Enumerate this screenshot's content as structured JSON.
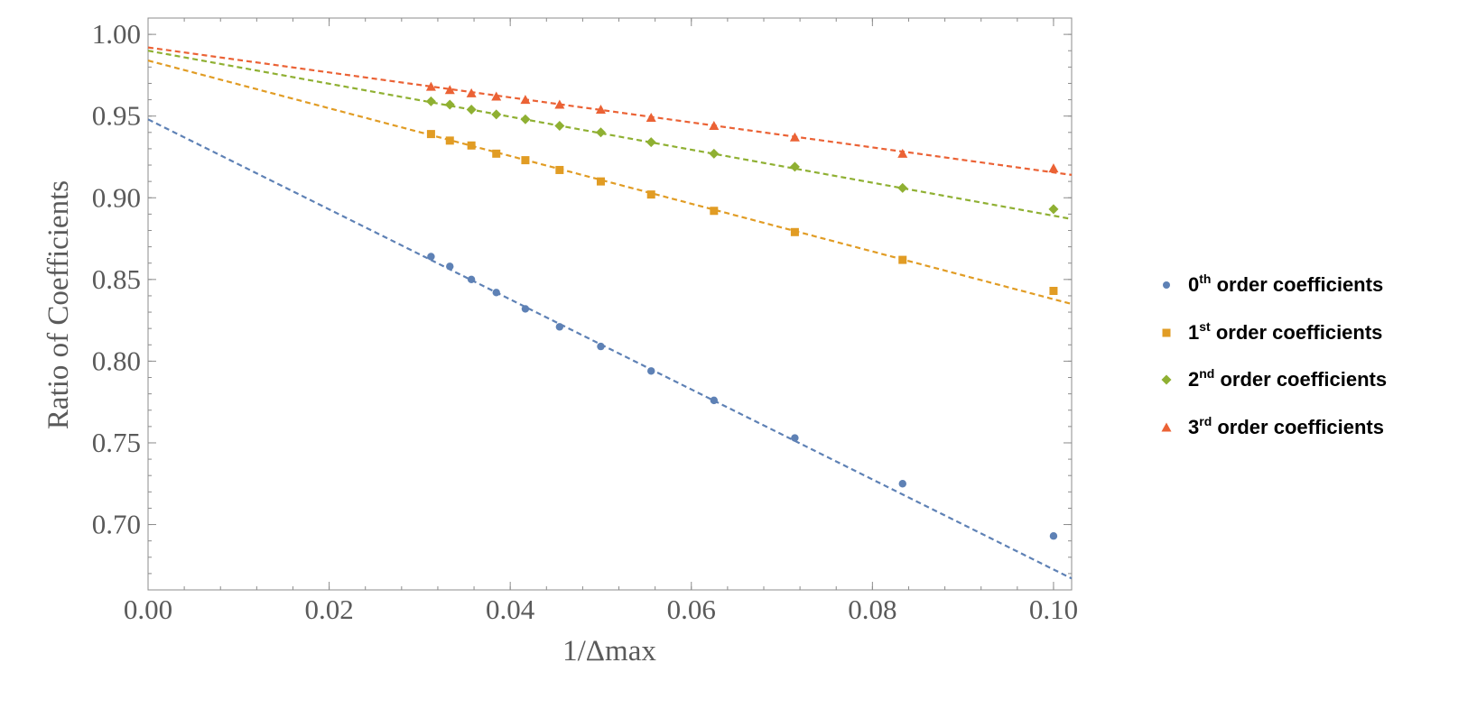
{
  "chart_data": {
    "type": "scatter",
    "xlabel": "1/Δmax",
    "ylabel": "Ratio of Coefficients",
    "xlim": [
      0,
      0.102
    ],
    "ylim": [
      0.66,
      1.01
    ],
    "x_ticks": [
      "0.00",
      "0.02",
      "0.04",
      "0.06",
      "0.08",
      "0.10"
    ],
    "y_ticks": [
      "0.70",
      "0.75",
      "0.80",
      "0.85",
      "0.90",
      "0.95",
      "1.00"
    ],
    "grid": false,
    "frame": true,
    "legend_position": "right",
    "x": [
      0.03125,
      0.03333,
      0.03571,
      0.03846,
      0.04167,
      0.04545,
      0.05,
      0.05556,
      0.0625,
      0.07143,
      0.08333,
      0.1
    ],
    "series": [
      {
        "name_num": "0",
        "name_sup": "th",
        "name_rest": " order coefficients",
        "marker": "circle",
        "color": "#5E81B5",
        "values": [
          0.864,
          0.858,
          0.85,
          0.842,
          0.832,
          0.821,
          0.809,
          0.794,
          0.776,
          0.753,
          0.725,
          0.693
        ],
        "fit": {
          "x": [
            0,
            0.102
          ],
          "y": [
            0.948,
            0.667
          ]
        }
      },
      {
        "name_num": "1",
        "name_sup": "st",
        "name_rest": " order coefficients",
        "marker": "square",
        "color": "#E19C24",
        "values": [
          0.939,
          0.935,
          0.932,
          0.927,
          0.923,
          0.917,
          0.91,
          0.902,
          0.892,
          0.879,
          0.862,
          0.843
        ],
        "fit": {
          "x": [
            0,
            0.102
          ],
          "y": [
            0.984,
            0.835
          ]
        }
      },
      {
        "name_num": "2",
        "name_sup": "nd",
        "name_rest": " order coefficients",
        "marker": "diamond",
        "color": "#8FB032",
        "values": [
          0.959,
          0.957,
          0.954,
          0.951,
          0.948,
          0.944,
          0.94,
          0.934,
          0.927,
          0.919,
          0.906,
          0.893
        ],
        "fit": {
          "x": [
            0,
            0.102
          ],
          "y": [
            0.99,
            0.887
          ]
        }
      },
      {
        "name_num": "3",
        "name_sup": "rd",
        "name_rest": " order coefficients",
        "marker": "triangle",
        "color": "#EB6235",
        "values": [
          0.968,
          0.966,
          0.964,
          0.962,
          0.96,
          0.957,
          0.954,
          0.949,
          0.944,
          0.937,
          0.927,
          0.918
        ],
        "fit": {
          "x": [
            0,
            0.102
          ],
          "y": [
            0.992,
            0.914
          ]
        }
      }
    ]
  }
}
